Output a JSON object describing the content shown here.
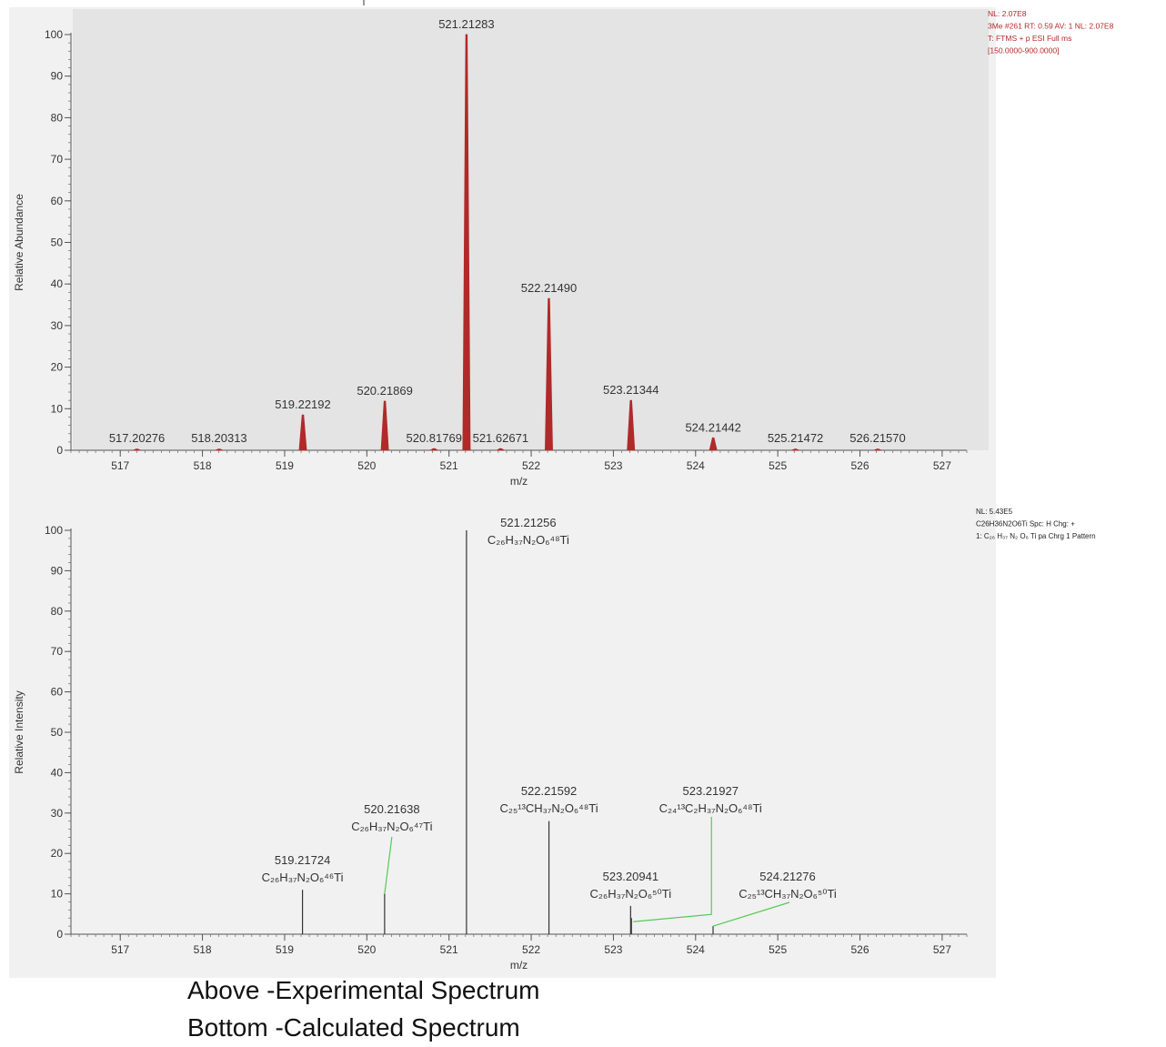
{
  "chart_data": [
    {
      "type": "line",
      "subtype": "mass-spectrum-profile",
      "title": "",
      "xlabel": "m/z",
      "ylabel": "Relative Abundance",
      "xlim": [
        516.4,
        527.3
      ],
      "ylim": [
        0,
        100
      ],
      "x_ticks": [
        517,
        518,
        519,
        520,
        521,
        522,
        523,
        524,
        525,
        526,
        527
      ],
      "y_ticks": [
        0,
        10,
        20,
        30,
        40,
        50,
        60,
        70,
        80,
        90,
        100
      ],
      "colors": {
        "plot_bg": "#e4e4e4",
        "figure_bg": "#f1f1f1",
        "peak": "#b02a2a",
        "info_text": "#b02a2a"
      },
      "info_lines": [
        "NL: 2.07E8",
        "3Me #261 RT: 0.59 AV: 1 NL: 2.07E8",
        "T: FTMS + p ESI Full ms",
        "[150.0000-900.0000]"
      ],
      "peaks": [
        {
          "x": 517.20276,
          "y": 0.3,
          "label": "517.20276"
        },
        {
          "x": 518.20313,
          "y": 0.3,
          "label": "518.20313"
        },
        {
          "x": 519.22192,
          "y": 8.5,
          "label": "519.22192"
        },
        {
          "x": 520.21869,
          "y": 11.8,
          "label": "520.21869"
        },
        {
          "x": 520.81769,
          "y": 0.4,
          "label": "520.81769"
        },
        {
          "x": 521.21283,
          "y": 100,
          "label": "521.21283"
        },
        {
          "x": 521.62671,
          "y": 0.4,
          "label": "521.62671"
        },
        {
          "x": 522.2149,
          "y": 36.5,
          "label": "522.21490"
        },
        {
          "x": 523.21344,
          "y": 12.0,
          "label": "523.21344"
        },
        {
          "x": 524.21442,
          "y": 3.0,
          "label": "524.21442"
        },
        {
          "x": 525.21472,
          "y": 0.3,
          "label": "525.21472"
        },
        {
          "x": 526.2157,
          "y": 0.3,
          "label": "526.21570"
        }
      ]
    },
    {
      "type": "bar",
      "subtype": "mass-spectrum-centroid",
      "title": "",
      "xlabel": "m/z",
      "ylabel": "Relative Intensity",
      "xlim": [
        516.4,
        527.3
      ],
      "ylim": [
        0,
        100
      ],
      "x_ticks": [
        517,
        518,
        519,
        520,
        521,
        522,
        523,
        524,
        525,
        526,
        527
      ],
      "y_ticks": [
        0,
        10,
        20,
        30,
        40,
        50,
        60,
        70,
        80,
        90,
        100
      ],
      "colors": {
        "figure_bg": "#f1f1f1",
        "stick": "#333333",
        "leader": "#57c957",
        "info_text": "#222222"
      },
      "info_lines": [
        "NL: 5.43E5",
        "C26H36N2O6Ti Spc: H Chg: +",
        "1: C₂₆ H₃₇ N₂ O₆ Ti  pa Chrg 1 Pattern"
      ],
      "peaks": [
        {
          "x": 519.21724,
          "y": 11,
          "mz": "519.21724",
          "formula": "C₂₆H₃₇N₂O₆⁴⁶Ti"
        },
        {
          "x": 520.21638,
          "y": 10,
          "mz": "520.21638",
          "formula": "C₂₆H₃₇N₂O₆⁴⁷Ti"
        },
        {
          "x": 521.21256,
          "y": 100,
          "mz": "521.21256",
          "formula": "C₂₆H₃₇N₂O₆⁴⁸Ti"
        },
        {
          "x": 522.21592,
          "y": 28,
          "mz": "522.21592",
          "formula": "C₂₅¹³CH₃₇N₂O₆⁴⁸Ti"
        },
        {
          "x": 523.20941,
          "y": 7,
          "mz": "523.20941",
          "formula": "C₂₆H₃₇N₂O₆⁵⁰Ti"
        },
        {
          "x": 523.21927,
          "y": 4,
          "mz": "523.21927",
          "formula": "C₂₄¹³C₂H₃₇N₂O₆⁴⁸Ti"
        },
        {
          "x": 524.21276,
          "y": 2,
          "mz": "524.21276",
          "formula": "C₂₅¹³CH₃₇N₂O₆⁵⁰Ti"
        }
      ]
    }
  ],
  "captions": {
    "line1": "Above -Experimental Spectrum",
    "line2": "Bottom -Calculated Spectrum"
  }
}
